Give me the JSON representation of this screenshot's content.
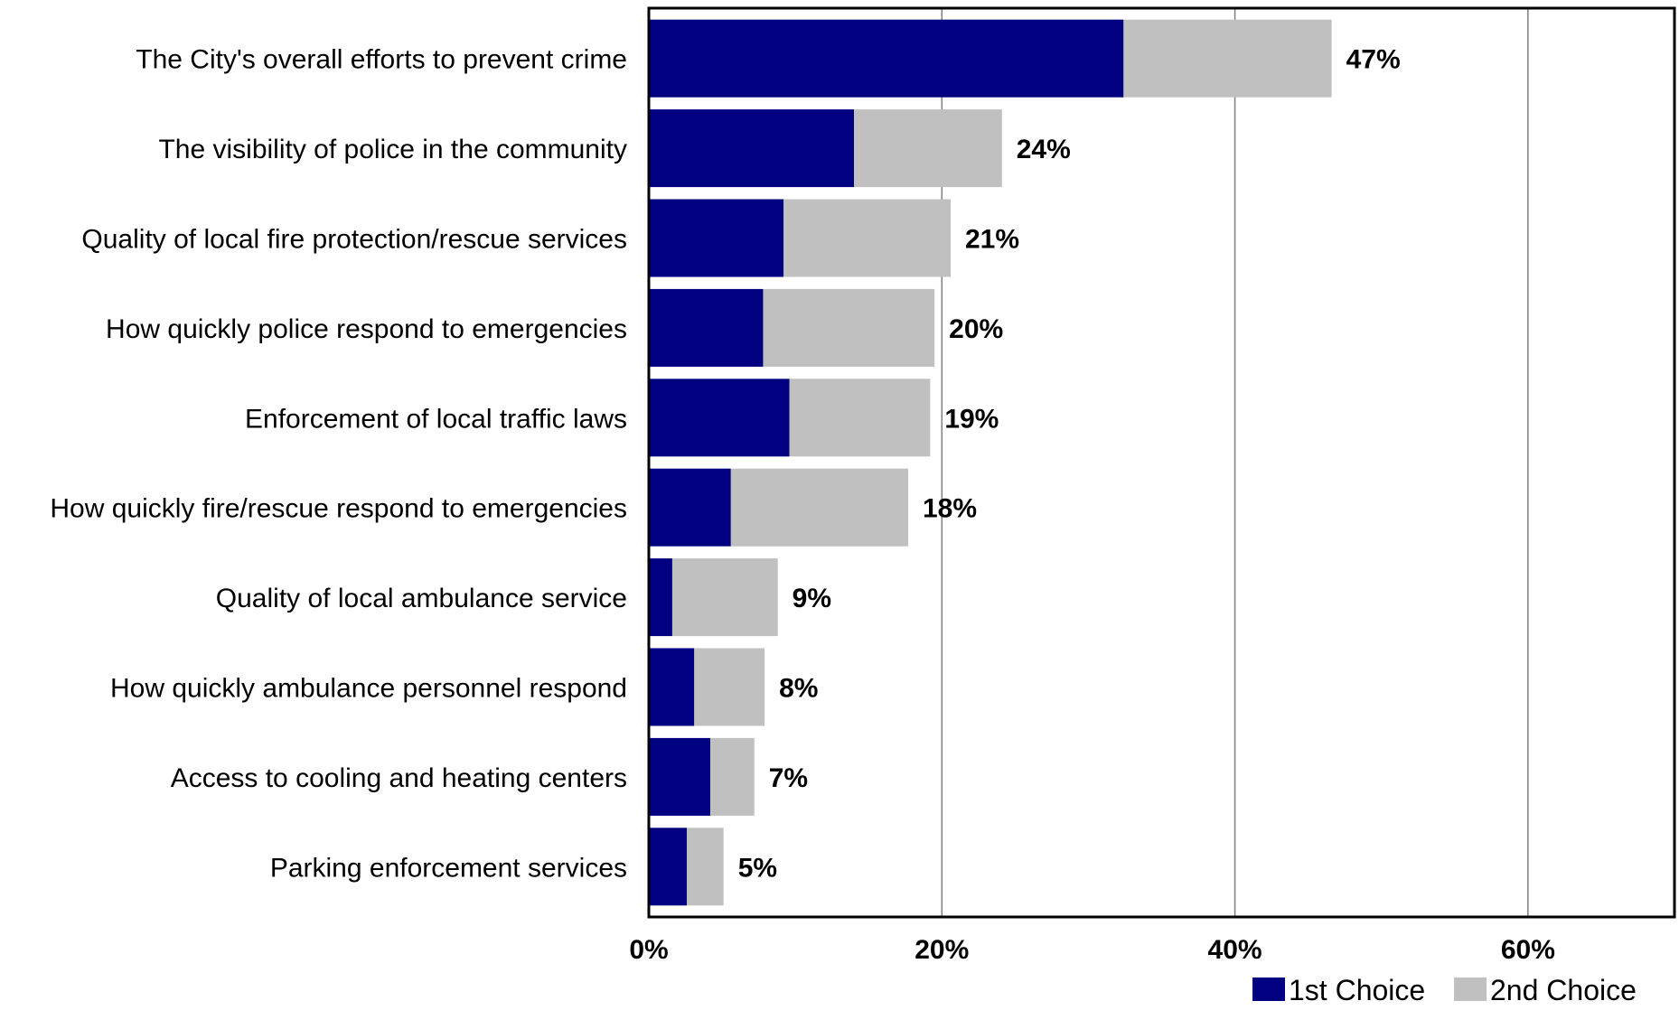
{
  "chart_data": {
    "type": "bar",
    "orientation": "horizontal",
    "stacked": true,
    "categories": [
      "The City's overall efforts to prevent crime",
      "The visibility of police in the community",
      "Quality of local fire protection/rescue services",
      "How quickly police respond to emergencies",
      "Enforcement of local traffic laws",
      "How quickly fire/rescue respond to emergencies",
      "Quality of local ambulance service",
      "How quickly ambulance personnel respond",
      "Access to cooling and heating centers",
      "Parking enforcement services"
    ],
    "series": [
      {
        "name": "1st Choice",
        "color": "#000080",
        "values": [
          32.4,
          14.0,
          9.2,
          7.8,
          9.6,
          5.6,
          1.6,
          3.1,
          4.2,
          2.6
        ]
      },
      {
        "name": "2nd Choice",
        "color": "#C0C0C0",
        "values": [
          14.2,
          10.1,
          11.4,
          11.7,
          9.6,
          12.1,
          7.2,
          4.8,
          3.0,
          2.5
        ]
      }
    ],
    "totals": [
      "47%",
      "24%",
      "21%",
      "20%",
      "19%",
      "18%",
      "9%",
      "8%",
      "7%",
      "5%"
    ],
    "xlim": [
      0,
      70
    ],
    "xticks": [
      0,
      20,
      40,
      60
    ],
    "xtick_labels": [
      "0%",
      "20%",
      "40%",
      "60%"
    ],
    "grid": true,
    "legend_position": "bottom-right"
  }
}
